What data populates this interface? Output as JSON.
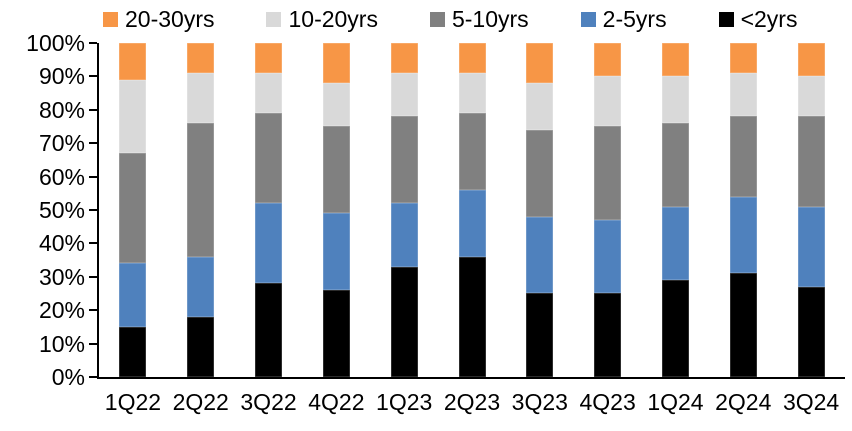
{
  "chart_data": {
    "type": "bar",
    "stacked": true,
    "title": "",
    "xlabel": "",
    "ylabel": "",
    "categories": [
      "1Q22",
      "2Q22",
      "3Q22",
      "4Q22",
      "1Q23",
      "2Q23",
      "3Q23",
      "4Q23",
      "1Q24",
      "2Q24",
      "3Q24"
    ],
    "series": [
      {
        "name": "20-30yrs",
        "color": "#F79646",
        "values": [
          11,
          9,
          9,
          12,
          9,
          9,
          12,
          10,
          10,
          9,
          10
        ]
      },
      {
        "name": "10-20yrs",
        "color": "#D9D9D9",
        "values": [
          22,
          15,
          12,
          13,
          13,
          12,
          14,
          15,
          14,
          13,
          12
        ]
      },
      {
        "name": "5-10yrs",
        "color": "#808080",
        "values": [
          33,
          40,
          27,
          26,
          26,
          23,
          26,
          28,
          25,
          24,
          27
        ]
      },
      {
        "name": "2-5yrs",
        "color": "#4F81BD",
        "values": [
          19,
          18,
          24,
          23,
          19,
          20,
          23,
          22,
          22,
          23,
          24
        ]
      },
      {
        "name": "<2yrs",
        "color": "#000000",
        "values": [
          15,
          18,
          28,
          26,
          33,
          36,
          25,
          25,
          29,
          31,
          27
        ]
      }
    ],
    "stack_order_top_to_bottom": [
      "20-30yrs",
      "10-20yrs",
      "5-10yrs",
      "2-5yrs",
      "<2yrs"
    ],
    "ylim": [
      0,
      100
    ],
    "y_tick_labels": [
      "100%",
      "90%",
      "80%",
      "70%",
      "60%",
      "50%",
      "40%",
      "30%",
      "20%",
      "10%",
      "0%"
    ],
    "grid": false,
    "legend_position": "top",
    "axis_color": "#000000"
  }
}
